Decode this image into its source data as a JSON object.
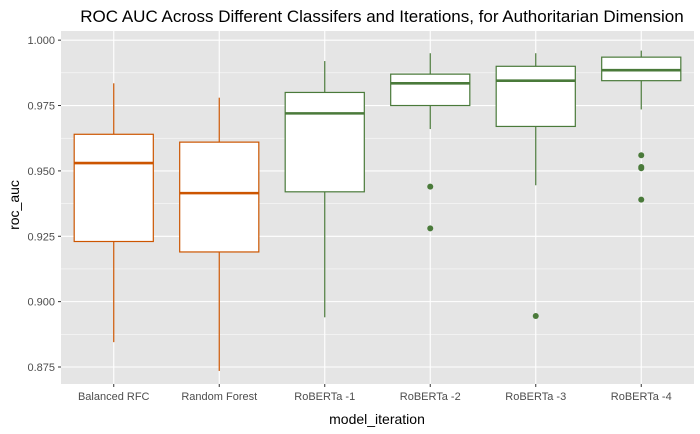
{
  "chart_data": {
    "type": "box",
    "title": "ROC AUC Across Different Classifers and Iterations, for Authoritarian Dimension",
    "xlabel": "model_iteration",
    "ylabel": "roc_auc",
    "ylim": [
      0.8685,
      1.0035
    ],
    "yticks": [
      0.875,
      0.9,
      0.925,
      0.95,
      0.975,
      1.0
    ],
    "ytick_labels": [
      "0.875",
      "0.900",
      "0.925",
      "0.950",
      "0.975",
      "1.000"
    ],
    "grid": true,
    "background_color": "#e5e5e5",
    "grid_color": "#ffffff",
    "categories": [
      "Balanced RFC",
      "Random Forest",
      "RoBERTa -1",
      "RoBERTa -2",
      "RoBERTa -3",
      "RoBERTa -4"
    ],
    "boxes": [
      {
        "category": "Balanced RFC",
        "color": "#cc5500",
        "whisker_low": 0.8845,
        "q1": 0.923,
        "median": 0.953,
        "q3": 0.964,
        "whisker_high": 0.9835,
        "outliers": []
      },
      {
        "category": "Random Forest",
        "color": "#cc5500",
        "whisker_low": 0.8735,
        "q1": 0.919,
        "median": 0.9415,
        "q3": 0.961,
        "whisker_high": 0.978,
        "outliers": []
      },
      {
        "category": "RoBERTa -1",
        "color": "#4a7a3a",
        "whisker_low": 0.894,
        "q1": 0.942,
        "median": 0.972,
        "q3": 0.98,
        "whisker_high": 0.992,
        "outliers": []
      },
      {
        "category": "RoBERTa -2",
        "color": "#4a7a3a",
        "whisker_low": 0.966,
        "q1": 0.975,
        "median": 0.9835,
        "q3": 0.987,
        "whisker_high": 0.995,
        "outliers": [
          0.944,
          0.928
        ]
      },
      {
        "category": "RoBERTa -3",
        "color": "#4a7a3a",
        "whisker_low": 0.9445,
        "q1": 0.967,
        "median": 0.9845,
        "q3": 0.99,
        "whisker_high": 0.995,
        "outliers": [
          0.8945
        ]
      },
      {
        "category": "RoBERTa -4",
        "color": "#4a7a3a",
        "whisker_low": 0.9735,
        "q1": 0.9845,
        "median": 0.9885,
        "q3": 0.9935,
        "whisker_high": 0.996,
        "outliers": [
          0.956,
          0.9515,
          0.951,
          0.939
        ]
      }
    ]
  }
}
